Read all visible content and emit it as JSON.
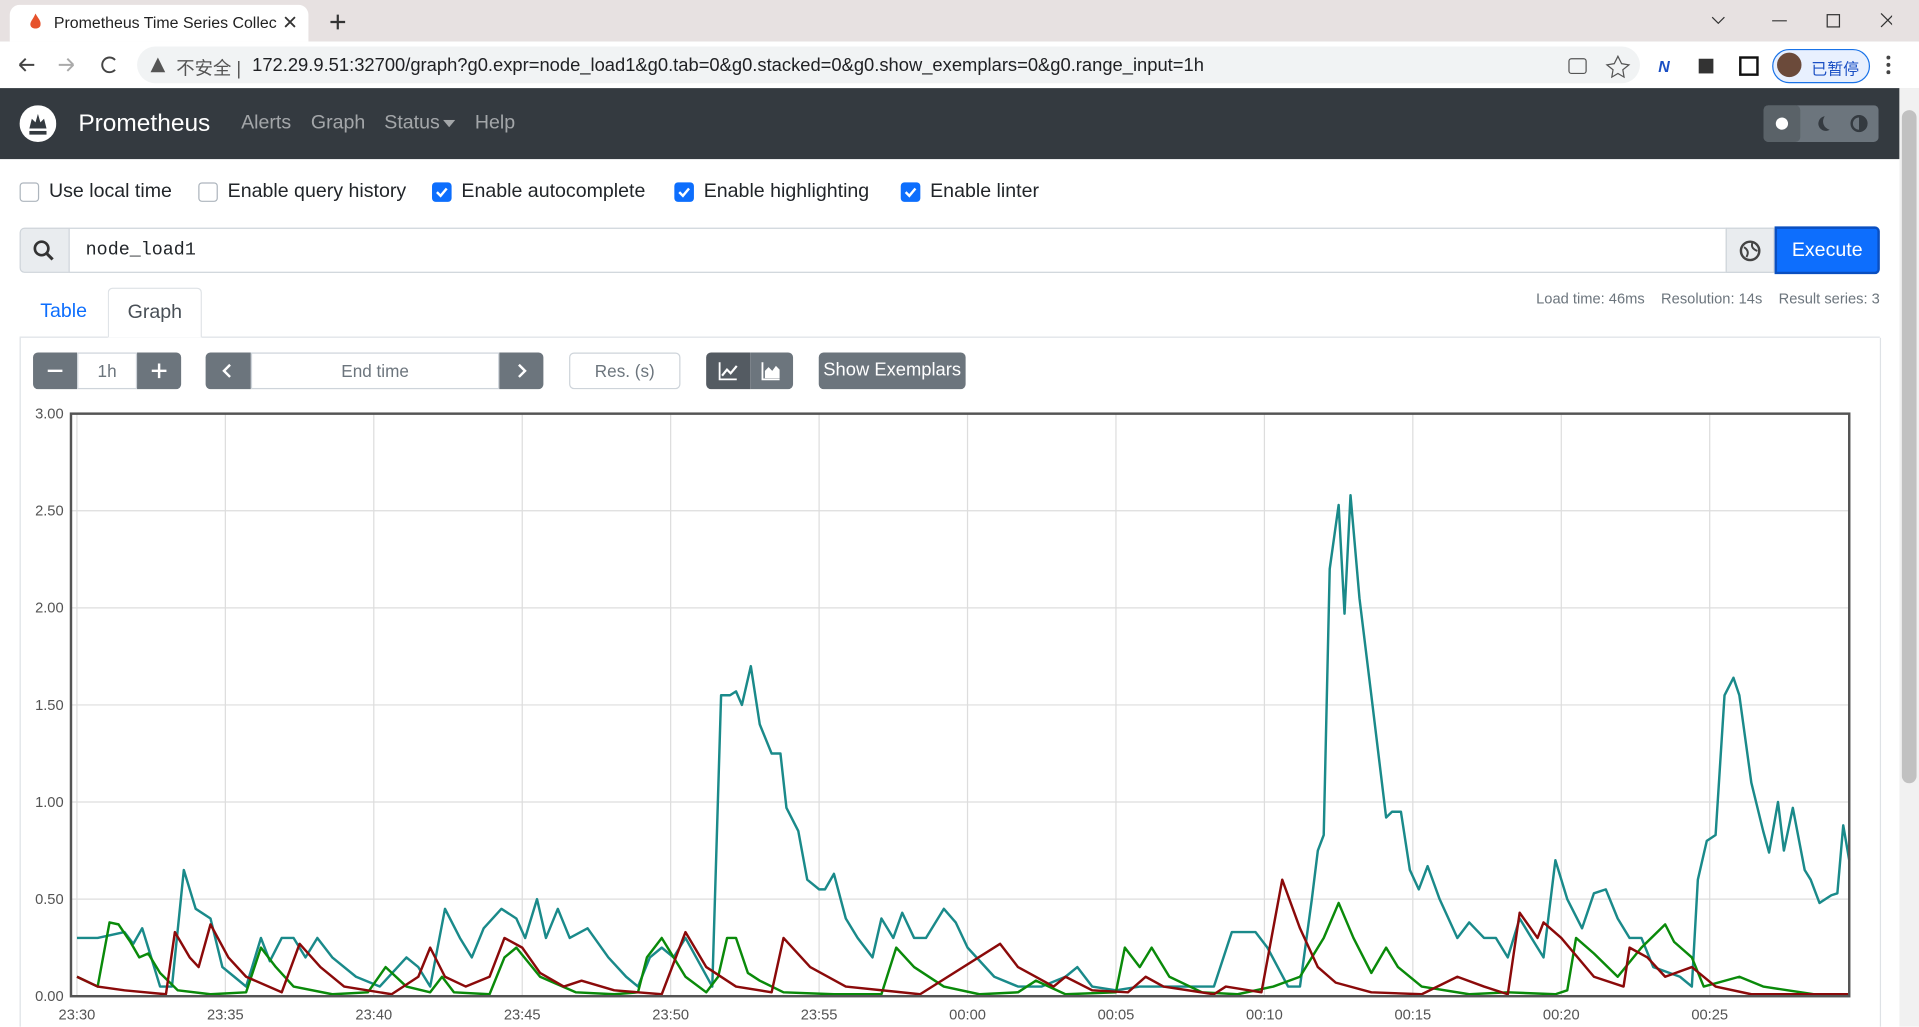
{
  "browser": {
    "tab_title": "Prometheus Time Series Collec",
    "address_warning": "不安全",
    "url": "172.29.9.51:32700/graph?g0.expr=node_load1&g0.tab=0&g0.stacked=0&g0.show_exemplars=0&g0.range_input=1h",
    "profile": "已暂停"
  },
  "navbar": {
    "brand": "Prometheus",
    "links": [
      "Alerts",
      "Graph",
      "Status",
      "Help"
    ]
  },
  "options": [
    {
      "label": "Use local time",
      "checked": false
    },
    {
      "label": "Enable query history",
      "checked": false
    },
    {
      "label": "Enable autocomplete",
      "checked": true
    },
    {
      "label": "Enable highlighting",
      "checked": true
    },
    {
      "label": "Enable linter",
      "checked": true
    }
  ],
  "query": {
    "expression": "node_load1",
    "execute": "Execute"
  },
  "tabs": {
    "items": [
      "Table",
      "Graph"
    ],
    "active": 1
  },
  "stats": [
    "Load time: 46ms",
    "Resolution: 14s",
    "Result series: 3"
  ],
  "controls": {
    "range": "1h",
    "end_time_placeholder": "End time",
    "resolution_placeholder": "Res. (s)",
    "exemplars_button": "Show Exemplars"
  },
  "chart_data": {
    "type": "line",
    "grid": true,
    "xlim": [
      -0.2,
      59.7
    ],
    "xticks": [
      {
        "value": 0,
        "label": "23:30"
      },
      {
        "value": 5,
        "label": "23:35"
      },
      {
        "value": 10,
        "label": "23:40"
      },
      {
        "value": 15,
        "label": "23:45"
      },
      {
        "value": 20,
        "label": "23:50"
      },
      {
        "value": 25,
        "label": "23:55"
      },
      {
        "value": 30,
        "label": "00:00"
      },
      {
        "value": 35,
        "label": "00:05"
      },
      {
        "value": 40,
        "label": "00:10"
      },
      {
        "value": 45,
        "label": "00:15"
      },
      {
        "value": 50,
        "label": "00:20"
      },
      {
        "value": 55,
        "label": "00:25"
      }
    ],
    "ylim": [
      0,
      3
    ],
    "yticks": [
      {
        "value": 0,
        "label": "0.00"
      },
      {
        "value": 0.5,
        "label": "0.50"
      },
      {
        "value": 1,
        "label": "1.00"
      },
      {
        "value": 1.5,
        "label": "1.50"
      },
      {
        "value": 2,
        "label": "2.00"
      },
      {
        "value": 2.5,
        "label": "2.50"
      },
      {
        "value": 3,
        "label": "3.00"
      }
    ],
    "series": [
      {
        "color": "#1a8a8a",
        "x": [
          0,
          0.7,
          1.6,
          1.9,
          2.2,
          2.4,
          2.8,
          3.2,
          3.6,
          4.0,
          4.5,
          4.9,
          5.3,
          5.7,
          5.9,
          6.2,
          6.5,
          6.9,
          7.3,
          7.7,
          8.1,
          8.6,
          9.4,
          10.2,
          11.1,
          11.5,
          11.9,
          12.4,
          12.9,
          13.3,
          13.7,
          14.3,
          14.8,
          15.1,
          15.5,
          15.8,
          16.2,
          16.6,
          17.2,
          17.9,
          18.5,
          18.9,
          19.3,
          19.7,
          20.1,
          20.5,
          21.4,
          21.7,
          22.0,
          22.2,
          22.4,
          22.7,
          23.0,
          23.4,
          23.7,
          23.9,
          24.3,
          24.6,
          25.0,
          25.2,
          25.5,
          25.9,
          26.3,
          26.8,
          27.1,
          27.5,
          27.8,
          28.2,
          28.6,
          29.2,
          29.6,
          30.0,
          30.9,
          31.7,
          32.5,
          33.3,
          33.7,
          34.2,
          35.0,
          35.8,
          36.6,
          37.5,
          38.3,
          38.9,
          39.7,
          40.1,
          40.8,
          41.2,
          41.6,
          41.8,
          42.0,
          42.2,
          42.5,
          42.7,
          42.9,
          43.2,
          43.6,
          44.1,
          44.3,
          44.6,
          44.9,
          45.2,
          45.5,
          45.9,
          46.5,
          46.9,
          47.4,
          47.8,
          48.2,
          48.6,
          49.0,
          49.4,
          49.8,
          50.2,
          50.7,
          51.1,
          51.5,
          51.9,
          52.3,
          52.7,
          53.1,
          54.0,
          54.4,
          54.6,
          54.9,
          55.2,
          55.5,
          55.8,
          56.0,
          56.4,
          56.8,
          57.0,
          57.3,
          57.5,
          57.8,
          58.2,
          58.4,
          58.7,
          59.1,
          59.3,
          59.5,
          59.7
        ],
        "values": [
          0.3,
          0.3,
          0.33,
          0.27,
          0.35,
          0.25,
          0.05,
          0.05,
          0.65,
          0.45,
          0.4,
          0.15,
          0.1,
          0.05,
          0.15,
          0.3,
          0.18,
          0.3,
          0.3,
          0.2,
          0.3,
          0.2,
          0.1,
          0.05,
          0.2,
          0.15,
          0.05,
          0.45,
          0.3,
          0.2,
          0.35,
          0.45,
          0.4,
          0.3,
          0.5,
          0.3,
          0.45,
          0.3,
          0.35,
          0.2,
          0.1,
          0.05,
          0.2,
          0.25,
          0.2,
          0.3,
          0.05,
          1.55,
          1.55,
          1.57,
          1.5,
          1.7,
          1.4,
          1.25,
          1.25,
          0.97,
          0.85,
          0.6,
          0.55,
          0.55,
          0.63,
          0.4,
          0.3,
          0.2,
          0.4,
          0.3,
          0.43,
          0.3,
          0.3,
          0.45,
          0.38,
          0.25,
          0.1,
          0.05,
          0.05,
          0.1,
          0.15,
          0.05,
          0.03,
          0.05,
          0.05,
          0.05,
          0.05,
          0.33,
          0.33,
          0.25,
          0.05,
          0.05,
          0.5,
          0.75,
          0.83,
          2.2,
          2.53,
          1.97,
          2.58,
          2.05,
          1.55,
          0.92,
          0.95,
          0.95,
          0.65,
          0.55,
          0.67,
          0.5,
          0.3,
          0.38,
          0.3,
          0.3,
          0.2,
          0.4,
          0.3,
          0.2,
          0.7,
          0.5,
          0.35,
          0.53,
          0.55,
          0.4,
          0.3,
          0.3,
          0.15,
          0.1,
          0.05,
          0.6,
          0.8,
          0.83,
          1.55,
          1.64,
          1.55,
          1.1,
          0.85,
          0.74,
          1.0,
          0.75,
          0.97,
          0.65,
          0.6,
          0.48,
          0.52,
          0.53,
          0.88,
          0.7
        ]
      },
      {
        "color": "#0a8a0a",
        "x": [
          0,
          0.7,
          1.1,
          1.4,
          1.8,
          2.1,
          2.4,
          2.8,
          3.4,
          4.5,
          5.7,
          6.2,
          6.7,
          7.3,
          8.6,
          9.8,
          10.4,
          11.1,
          11.9,
          12.3,
          12.7,
          13.9,
          14.4,
          14.8,
          15.6,
          16.8,
          18.1,
          18.9,
          19.2,
          19.7,
          20.1,
          20.5,
          21.2,
          21.6,
          21.9,
          22.2,
          22.6,
          23.0,
          23.8,
          25.5,
          27.1,
          27.6,
          28.2,
          29.2,
          30.4,
          31.7,
          32.3,
          33.3,
          35.0,
          35.3,
          35.8,
          36.2,
          36.8,
          37.9,
          39.1,
          40.3,
          41.2,
          42.0,
          42.5,
          43.0,
          43.6,
          44.1,
          44.5,
          45.3,
          46.9,
          48.2,
          49.8,
          50.2,
          50.5,
          51.1,
          51.9,
          52.7,
          53.5,
          53.8,
          54.4,
          54.8,
          56.0,
          56.8,
          58.5,
          59.7
        ],
        "values": [
          0.1,
          0.05,
          0.38,
          0.37,
          0.28,
          0.2,
          0.22,
          0.12,
          0.03,
          0.01,
          0.02,
          0.25,
          0.15,
          0.05,
          0.01,
          0.02,
          0.15,
          0.05,
          0.02,
          0.1,
          0.02,
          0.01,
          0.2,
          0.25,
          0.1,
          0.02,
          0.01,
          0.02,
          0.2,
          0.3,
          0.2,
          0.1,
          0.02,
          0.1,
          0.3,
          0.3,
          0.12,
          0.08,
          0.02,
          0.01,
          0.01,
          0.25,
          0.15,
          0.05,
          0.01,
          0.02,
          0.08,
          0.01,
          0.02,
          0.25,
          0.15,
          0.25,
          0.1,
          0.02,
          0.01,
          0.05,
          0.1,
          0.3,
          0.48,
          0.3,
          0.12,
          0.25,
          0.15,
          0.05,
          0.01,
          0.02,
          0.01,
          0.03,
          0.3,
          0.22,
          0.1,
          0.25,
          0.37,
          0.28,
          0.2,
          0.05,
          0.1,
          0.05,
          0.01,
          0.01
        ]
      },
      {
        "color": "#8b0a0a",
        "x": [
          0,
          0.7,
          1.6,
          3.0,
          3.3,
          3.8,
          4.1,
          4.5,
          5.1,
          5.7,
          6.9,
          7.5,
          8.2,
          9.0,
          10.6,
          11.5,
          11.9,
          12.4,
          13.1,
          13.9,
          14.4,
          15.0,
          15.6,
          16.4,
          17.0,
          18.1,
          18.9,
          19.7,
          20.5,
          21.2,
          22.2,
          23.4,
          23.8,
          24.7,
          25.9,
          28.4,
          31.1,
          31.7,
          32.9,
          33.3,
          34.2,
          35.4,
          36.0,
          36.6,
          38.3,
          38.7,
          39.9,
          40.6,
          41.2,
          41.8,
          42.4,
          43.6,
          45.3,
          46.5,
          47.4,
          48.2,
          48.6,
          49.2,
          49.4,
          50.0,
          51.1,
          52.1,
          52.3,
          52.9,
          53.5,
          54.4,
          55.2,
          56.4,
          59.7
        ],
        "values": [
          0.1,
          0.05,
          0.03,
          0.01,
          0.33,
          0.2,
          0.15,
          0.37,
          0.2,
          0.1,
          0.02,
          0.27,
          0.15,
          0.05,
          0.01,
          0.1,
          0.25,
          0.1,
          0.05,
          0.1,
          0.3,
          0.25,
          0.12,
          0.05,
          0.08,
          0.03,
          0.02,
          0.01,
          0.33,
          0.15,
          0.05,
          0.02,
          0.3,
          0.15,
          0.05,
          0.01,
          0.27,
          0.15,
          0.05,
          0.1,
          0.03,
          0.02,
          0.1,
          0.05,
          0.01,
          0.05,
          0.02,
          0.6,
          0.35,
          0.15,
          0.07,
          0.02,
          0.01,
          0.1,
          0.05,
          0.01,
          0.43,
          0.3,
          0.38,
          0.3,
          0.1,
          0.05,
          0.25,
          0.2,
          0.1,
          0.15,
          0.05,
          0.01,
          0.01
        ]
      }
    ]
  }
}
